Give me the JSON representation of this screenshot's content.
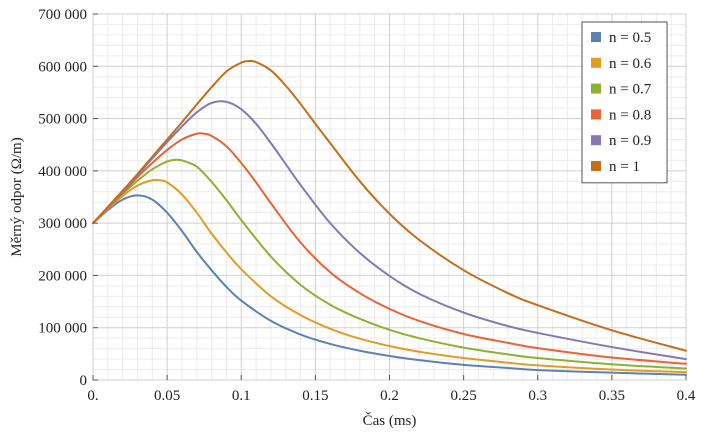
{
  "chart_data": {
    "type": "line",
    "xlabel": "Čas (ms)",
    "ylabel": "Měrný odpor (Ω/m)",
    "xlim": [
      0,
      0.4
    ],
    "ylim": [
      0,
      700000
    ],
    "x_ticks": [
      0,
      0.05,
      0.1,
      0.15,
      0.2,
      0.25,
      0.3,
      0.35,
      0.4
    ],
    "x_tick_labels": [
      "0.",
      "0.05",
      "0.1",
      "0.15",
      "0.2",
      "0.25",
      "0.3",
      "0.35",
      "0.4"
    ],
    "y_ticks": [
      0,
      100000,
      200000,
      300000,
      400000,
      500000,
      600000,
      700000
    ],
    "y_tick_labels": [
      "0",
      "100 000",
      "200 000",
      "300 000",
      "400 000",
      "500 000",
      "600 000",
      "700 000"
    ],
    "grid": true,
    "legend": "top-right",
    "series": [
      {
        "name": "n = 0.5",
        "color": "#5E81B5",
        "x": [
          0,
          0.01,
          0.02,
          0.03,
          0.04,
          0.05,
          0.06,
          0.07,
          0.08,
          0.09,
          0.1,
          0.12,
          0.14,
          0.16,
          0.18,
          0.2,
          0.22,
          0.25,
          0.28,
          0.3,
          0.35,
          0.4
        ],
        "values": [
          300000,
          325000,
          345000,
          353000,
          345000,
          320000,
          285000,
          245000,
          210000,
          178000,
          152000,
          113000,
          87000,
          69000,
          56000,
          46000,
          38000,
          29000,
          23000,
          19000,
          14000,
          10000
        ]
      },
      {
        "name": "n = 0.6",
        "color": "#E19C24",
        "x": [
          0,
          0.01,
          0.02,
          0.03,
          0.04,
          0.045,
          0.05,
          0.06,
          0.07,
          0.08,
          0.09,
          0.1,
          0.12,
          0.14,
          0.16,
          0.18,
          0.2,
          0.22,
          0.25,
          0.28,
          0.3,
          0.35,
          0.4
        ],
        "values": [
          300000,
          327000,
          352000,
          372000,
          382000,
          382000,
          378000,
          355000,
          320000,
          280000,
          244000,
          212000,
          160000,
          124000,
          98000,
          79000,
          65000,
          54000,
          42000,
          33000,
          28000,
          20000,
          15000
        ]
      },
      {
        "name": "n = 0.7",
        "color": "#8FB032",
        "x": [
          0,
          0.01,
          0.02,
          0.03,
          0.04,
          0.05,
          0.055,
          0.06,
          0.07,
          0.08,
          0.09,
          0.1,
          0.12,
          0.14,
          0.16,
          0.18,
          0.2,
          0.22,
          0.25,
          0.28,
          0.3,
          0.35,
          0.4
        ],
        "values": [
          300000,
          328000,
          356000,
          381000,
          403000,
          418000,
          421000,
          420000,
          408000,
          379000,
          344000,
          306000,
          236000,
          182000,
          144000,
          117000,
          96000,
          80000,
          62000,
          49000,
          42000,
          30000,
          22000
        ]
      },
      {
        "name": "n = 0.8",
        "color": "#EB6235",
        "x": [
          0,
          0.01,
          0.02,
          0.03,
          0.04,
          0.05,
          0.06,
          0.07,
          0.075,
          0.08,
          0.09,
          0.1,
          0.11,
          0.12,
          0.14,
          0.16,
          0.18,
          0.2,
          0.22,
          0.25,
          0.28,
          0.3,
          0.35,
          0.4
        ],
        "values": [
          300000,
          329000,
          358000,
          388000,
          415000,
          440000,
          460000,
          471000,
          471000,
          467000,
          447000,
          415000,
          378000,
          338000,
          263000,
          206000,
          166000,
          136000,
          113000,
          88000,
          71000,
          61000,
          43000,
          31000
        ]
      },
      {
        "name": "n = 0.9",
        "color": "#8778B3",
        "x": [
          0,
          0.01,
          0.02,
          0.03,
          0.04,
          0.05,
          0.06,
          0.07,
          0.08,
          0.09,
          0.1,
          0.11,
          0.12,
          0.13,
          0.14,
          0.16,
          0.18,
          0.2,
          0.22,
          0.25,
          0.28,
          0.3,
          0.35,
          0.4
        ],
        "values": [
          300000,
          330000,
          360000,
          392000,
          424000,
          455000,
          485000,
          512000,
          530000,
          532000,
          518000,
          490000,
          453000,
          413000,
          373000,
          300000,
          243000,
          199000,
          165000,
          129000,
          103000,
          90000,
          63000,
          40000
        ]
      },
      {
        "name": "n = 1",
        "color": "#C56E1A",
        "x": [
          0,
          0.01,
          0.02,
          0.03,
          0.04,
          0.05,
          0.06,
          0.07,
          0.08,
          0.09,
          0.1,
          0.105,
          0.11,
          0.12,
          0.13,
          0.14,
          0.15,
          0.16,
          0.18,
          0.2,
          0.22,
          0.25,
          0.28,
          0.3,
          0.35,
          0.4
        ],
        "values": [
          300000,
          331000,
          362000,
          394000,
          427000,
          460000,
          493000,
          527000,
          560000,
          590000,
          607000,
          610000,
          608000,
          592000,
          563000,
          528000,
          490000,
          453000,
          380000,
          318000,
          268000,
          210000,
          166000,
          143000,
          95000,
          56000
        ]
      }
    ]
  }
}
